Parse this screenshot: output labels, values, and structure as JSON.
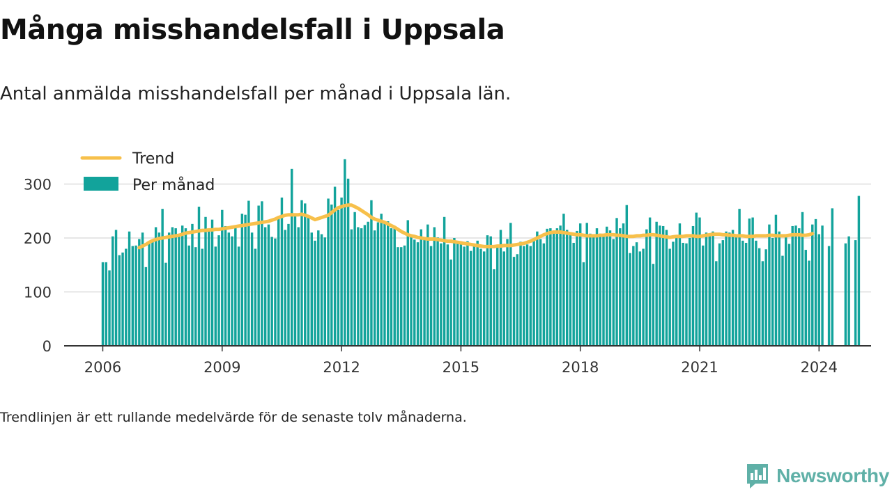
{
  "title": "Många misshandelsfall i Uppsala",
  "subtitle": "Antal anmälda misshandelsfall per månad i Uppsala län.",
  "footnote": "Trendlinjen är ett rullande medelvärde för de senaste tolv månaderna.",
  "brand": {
    "name": "Newsworthy",
    "logo_icon": "newsworthy-bar-chart-icon",
    "color": "#5fb0a7"
  },
  "colors": {
    "bars": "#12a39b",
    "trend": "#f7c04b",
    "grid": "#dddddd",
    "axis": "#333333"
  },
  "chart_data": {
    "type": "bar",
    "title": "Många misshandelsfall i Uppsala",
    "subtitle": "Antal anmälda misshandelsfall per månad i Uppsala län.",
    "x_start": "2006-01",
    "x_ticks": [
      "2006",
      "2009",
      "2012",
      "2015",
      "2018",
      "2021",
      "2024"
    ],
    "y_ticks": [
      "0",
      "100",
      "200",
      "300"
    ],
    "ylim": [
      0,
      345
    ],
    "grid": true,
    "legend": {
      "position": "top-left",
      "entries": [
        "Trend",
        "Per månad"
      ]
    },
    "series": [
      {
        "name": "Per månad",
        "type": "bar",
        "color": "#12a39b",
        "values": [
          155,
          155,
          140,
          203,
          215,
          168,
          173,
          180,
          212,
          185,
          186,
          198,
          210,
          146,
          192,
          195,
          220,
          210,
          254,
          154,
          210,
          220,
          218,
          205,
          223,
          218,
          186,
          226,
          183,
          258,
          180,
          239,
          218,
          234,
          184,
          205,
          252,
          222,
          210,
          203,
          219,
          184,
          245,
          243,
          269,
          210,
          180,
          260,
          268,
          220,
          225,
          202,
          199,
          237,
          275,
          215,
          226,
          328,
          240,
          220,
          270,
          264,
          238,
          210,
          195,
          214,
          207,
          201,
          273,
          262,
          295,
          252,
          275,
          346,
          310,
          216,
          248,
          220,
          218,
          224,
          230,
          270,
          214,
          229,
          245,
          227,
          231,
          218,
          218,
          183,
          183,
          186,
          233,
          205,
          197,
          192,
          216,
          200,
          225,
          185,
          220,
          201,
          190,
          239,
          188,
          160,
          200,
          190,
          188,
          184,
          194,
          176,
          185,
          195,
          180,
          175,
          205,
          203,
          142,
          185,
          215,
          175,
          198,
          228,
          165,
          170,
          193,
          185,
          188,
          185,
          198,
          212,
          198,
          190,
          217,
          218,
          212,
          218,
          223,
          245,
          215,
          206,
          191,
          213,
          227,
          155,
          228,
          208,
          204,
          218,
          208,
          207,
          221,
          214,
          198,
          237,
          218,
          227,
          261,
          172,
          185,
          192,
          175,
          180,
          216,
          238,
          152,
          230,
          223,
          222,
          215,
          180,
          193,
          200,
          227,
          191,
          190,
          200,
          222,
          247,
          238,
          186,
          210,
          205,
          212,
          157,
          190,
          196,
          212,
          210,
          215,
          205,
          254,
          195,
          191,
          236,
          238,
          195,
          181,
          157,
          179,
          225,
          200,
          243,
          212,
          167,
          205,
          189,
          222,
          223,
          218,
          248,
          178,
          158,
          225,
          235,
          207,
          223,
          null,
          185,
          255,
          null,
          null,
          null,
          190,
          203,
          null,
          196,
          278
        ]
      },
      {
        "name": "Trend",
        "type": "line",
        "color": "#f7c04b",
        "start": "2006-12",
        "values": [
          182,
          185,
          188,
          192,
          195,
          197,
          199,
          200,
          201,
          202,
          203,
          204,
          205,
          207,
          209,
          210,
          211,
          212,
          213,
          214,
          214,
          215,
          215,
          216,
          216,
          217,
          218,
          219,
          220,
          221,
          222,
          223,
          224,
          225,
          226,
          227,
          228,
          229,
          230,
          231,
          233,
          235,
          238,
          240,
          242,
          243,
          243,
          243,
          243,
          244,
          242,
          240,
          237,
          234,
          236,
          238,
          240,
          242,
          247,
          252,
          256,
          258,
          260,
          261,
          261,
          258,
          255,
          251,
          247,
          243,
          238,
          235,
          233,
          231,
          229,
          226,
          223,
          220,
          216,
          212,
          209,
          206,
          204,
          203,
          201,
          200,
          199,
          198,
          198,
          198,
          197,
          196,
          195,
          194,
          194,
          193,
          192,
          191,
          190,
          189,
          188,
          187,
          186,
          185,
          184,
          184,
          184,
          184,
          185,
          185,
          186,
          186,
          186,
          187,
          188,
          189,
          190,
          192,
          194,
          197,
          200,
          203,
          206,
          208,
          210,
          211,
          211,
          211,
          210,
          209,
          208,
          207,
          206,
          206,
          205,
          204,
          204,
          204,
          204,
          205,
          205,
          206,
          206,
          206,
          205,
          205,
          204,
          203,
          203,
          203,
          204,
          204,
          205,
          205,
          206,
          206,
          205,
          204,
          203,
          202,
          201,
          202,
          203,
          203,
          203,
          204,
          204,
          204,
          203,
          203,
          204,
          205,
          206,
          207,
          207,
          207,
          206,
          206,
          205,
          205,
          204,
          204,
          204,
          203,
          203,
          203,
          204,
          204,
          204,
          204,
          205,
          205,
          204,
          204,
          204,
          204,
          205,
          206,
          206,
          206,
          205,
          205,
          206,
          208
        ]
      }
    ]
  }
}
